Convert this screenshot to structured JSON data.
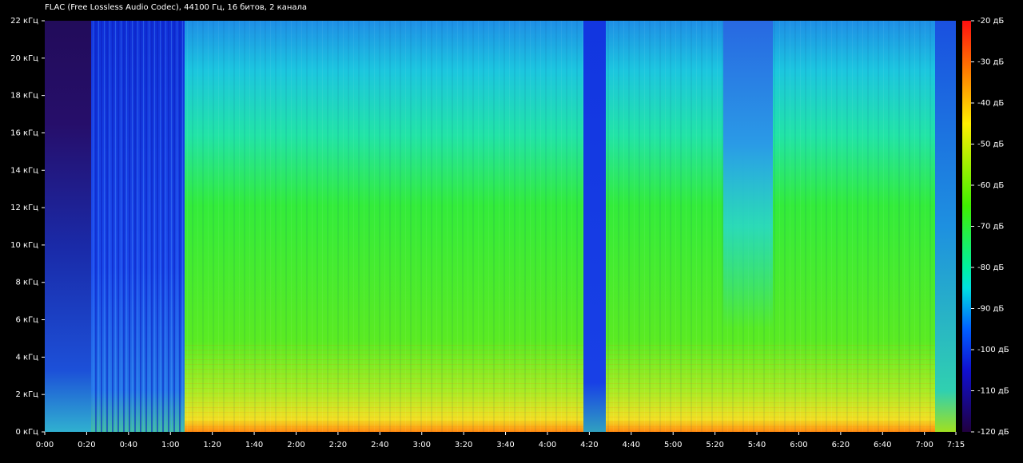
{
  "chart_data": {
    "type": "spectrogram",
    "title": "FLAC (Free Lossless Audio Codec), 44100 Гц, 16 битов, 2 канала",
    "xlim": [
      0,
      435
    ],
    "xticks": [
      {
        "value": 0,
        "label": "0:00"
      },
      {
        "value": 20,
        "label": "0:20"
      },
      {
        "value": 40,
        "label": "0:40"
      },
      {
        "value": 60,
        "label": "1:00"
      },
      {
        "value": 80,
        "label": "1:20"
      },
      {
        "value": 100,
        "label": "1:40"
      },
      {
        "value": 120,
        "label": "2:00"
      },
      {
        "value": 140,
        "label": "2:20"
      },
      {
        "value": 160,
        "label": "2:40"
      },
      {
        "value": 180,
        "label": "3:00"
      },
      {
        "value": 200,
        "label": "3:20"
      },
      {
        "value": 220,
        "label": "3:40"
      },
      {
        "value": 240,
        "label": "4:00"
      },
      {
        "value": 260,
        "label": "4:20"
      },
      {
        "value": 280,
        "label": "4:40"
      },
      {
        "value": 300,
        "label": "5:00"
      },
      {
        "value": 320,
        "label": "5:20"
      },
      {
        "value": 340,
        "label": "5:40"
      },
      {
        "value": 360,
        "label": "6:00"
      },
      {
        "value": 380,
        "label": "6:20"
      },
      {
        "value": 400,
        "label": "6:40"
      },
      {
        "value": 420,
        "label": "7:00"
      },
      {
        "value": 435,
        "label": "7:15"
      }
    ],
    "ylim": [
      0,
      22
    ],
    "yticks": [
      {
        "value": 0,
        "label": "0 кГц"
      },
      {
        "value": 2,
        "label": "2 кГц"
      },
      {
        "value": 4,
        "label": "4 кГц"
      },
      {
        "value": 6,
        "label": "6 кГц"
      },
      {
        "value": 8,
        "label": "8 кГц"
      },
      {
        "value": 10,
        "label": "10 кГц"
      },
      {
        "value": 12,
        "label": "12 кГц"
      },
      {
        "value": 14,
        "label": "14 кГц"
      },
      {
        "value": 16,
        "label": "16 кГц"
      },
      {
        "value": 18,
        "label": "18 кГц"
      },
      {
        "value": 20,
        "label": "20 кГц"
      },
      {
        "value": 22,
        "label": "22 кГц"
      }
    ],
    "clim": [
      -120,
      -20
    ],
    "cticks": [
      {
        "value": -20,
        "label": "-20 дБ"
      },
      {
        "value": -30,
        "label": "-30 дБ"
      },
      {
        "value": -40,
        "label": "-40 дБ"
      },
      {
        "value": -50,
        "label": "-50 дБ"
      },
      {
        "value": -60,
        "label": "-60 дБ"
      },
      {
        "value": -70,
        "label": "-70 дБ"
      },
      {
        "value": -80,
        "label": "-80 дБ"
      },
      {
        "value": -90,
        "label": "-90 дБ"
      },
      {
        "value": -100,
        "label": "-100 дБ"
      },
      {
        "value": -110,
        "label": "-110 дБ"
      },
      {
        "value": -120,
        "label": "-120 дБ"
      }
    ]
  }
}
